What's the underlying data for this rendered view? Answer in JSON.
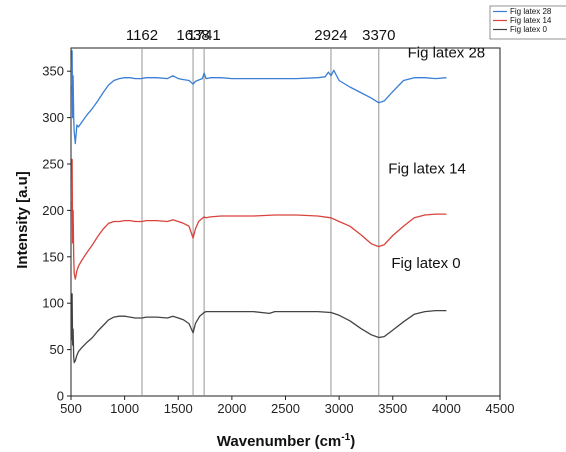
{
  "chart_data": {
    "type": "line",
    "xlabel_main": "Wavenumber (cm",
    "xlabel_sup": "-1",
    "xlabel_tail": ")",
    "ylabel": "Intensity [a.u]",
    "xlim": [
      500,
      4500
    ],
    "ylim": [
      0,
      375
    ],
    "xticks": [
      500,
      1000,
      1500,
      2000,
      2500,
      3000,
      3500,
      4000,
      4500
    ],
    "yticks": [
      0,
      50,
      100,
      150,
      200,
      250,
      300,
      350
    ],
    "reference_lines": [
      1162,
      1638,
      1741,
      2924,
      3370
    ],
    "reference_labels": [
      "1162",
      "1638",
      "1741",
      "2924",
      "3370"
    ],
    "legend_position": "top-right",
    "series": [
      {
        "name": "Fig latex  28",
        "label": "Fig latex 28",
        "color": "#3a7fd5",
        "x": [
          505,
          510,
          515,
          520,
          525,
          530,
          540,
          555,
          570,
          600,
          650,
          700,
          750,
          800,
          850,
          900,
          950,
          1000,
          1050,
          1100,
          1150,
          1200,
          1300,
          1400,
          1450,
          1500,
          1550,
          1600,
          1638,
          1660,
          1700,
          1725,
          1741,
          1760,
          1800,
          1900,
          2000,
          2200,
          2400,
          2600,
          2800,
          2870,
          2900,
          2924,
          2950,
          3000,
          3100,
          3200,
          3300,
          3370,
          3420,
          3500,
          3600,
          3700,
          3800,
          3900,
          4000
        ],
        "y": [
          335,
          372,
          300,
          345,
          300,
          285,
          272,
          292,
          290,
          295,
          303,
          310,
          318,
          327,
          335,
          340,
          342,
          343,
          343,
          342,
          342,
          343,
          343,
          342,
          345,
          342,
          341,
          340,
          336,
          339,
          341,
          342,
          348,
          342,
          343,
          343,
          342,
          342,
          342,
          342,
          343,
          344,
          349,
          345,
          351,
          340,
          333,
          327,
          321,
          316,
          318,
          328,
          340,
          343,
          343,
          342,
          343
        ]
      },
      {
        "name": "Fig latex  14",
        "label": "Fig latex  14",
        "color": "#d9433b",
        "x": [
          505,
          510,
          515,
          520,
          525,
          530,
          540,
          555,
          570,
          600,
          650,
          700,
          750,
          800,
          850,
          900,
          950,
          1000,
          1050,
          1100,
          1162,
          1200,
          1300,
          1400,
          1450,
          1500,
          1550,
          1600,
          1638,
          1660,
          1690,
          1720,
          1741,
          1760,
          1800,
          1900,
          2000,
          2200,
          2400,
          2600,
          2800,
          2924,
          3000,
          3100,
          3200,
          3300,
          3370,
          3420,
          3500,
          3600,
          3700,
          3800,
          3900,
          4000
        ],
        "y": [
          210,
          255,
          165,
          200,
          150,
          132,
          126,
          135,
          140,
          146,
          155,
          163,
          172,
          180,
          186,
          188,
          188,
          189,
          189,
          188,
          188,
          189,
          189,
          188,
          190,
          188,
          186,
          183,
          170,
          180,
          188,
          191,
          193,
          192,
          193,
          194,
          194,
          194,
          195,
          195,
          194,
          192,
          188,
          183,
          174,
          164,
          161,
          163,
          173,
          183,
          192,
          195,
          196,
          196
        ]
      },
      {
        "name": "Fig latex  0",
        "label": "Fig latex  0",
        "color": "#444444",
        "x": [
          505,
          510,
          515,
          520,
          525,
          530,
          540,
          555,
          570,
          600,
          650,
          700,
          750,
          800,
          850,
          900,
          950,
          1000,
          1050,
          1100,
          1162,
          1200,
          1300,
          1400,
          1450,
          1500,
          1550,
          1600,
          1638,
          1660,
          1700,
          1741,
          1760,
          1800,
          1900,
          2000,
          2200,
          2350,
          2400,
          2600,
          2800,
          2924,
          3000,
          3100,
          3200,
          3300,
          3370,
          3420,
          3500,
          3600,
          3700,
          3800,
          3900,
          4000
        ],
        "y": [
          60,
          110,
          55,
          72,
          42,
          36,
          38,
          44,
          48,
          52,
          58,
          63,
          70,
          76,
          82,
          85,
          86,
          86,
          85,
          84,
          84,
          85,
          85,
          84,
          86,
          84,
          82,
          78,
          68,
          78,
          86,
          90,
          91,
          91,
          91,
          91,
          91,
          89,
          91,
          91,
          91,
          90,
          87,
          81,
          73,
          66,
          63,
          64,
          71,
          80,
          88,
          91,
          92,
          92
        ]
      }
    ]
  }
}
